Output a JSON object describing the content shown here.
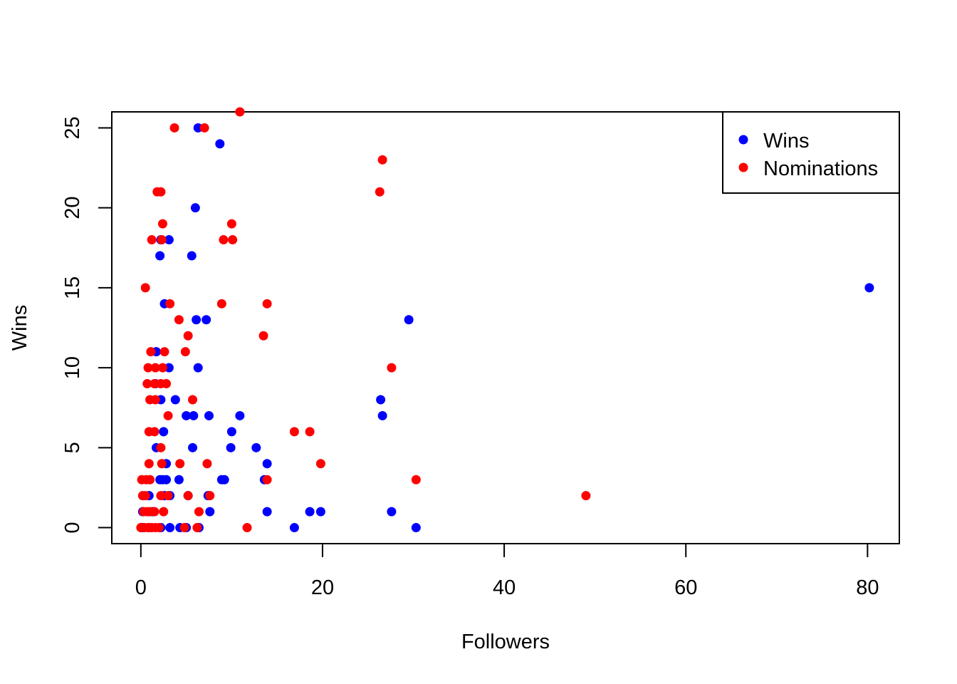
{
  "chart_data": {
    "type": "scatter",
    "title": "",
    "xlabel": "Followers",
    "ylabel": "Wins",
    "xlim": [
      -3.2,
      83.5
    ],
    "ylim": [
      -1.0,
      26.0
    ],
    "xticks": [
      0,
      20,
      40,
      60,
      80
    ],
    "yticks": [
      0,
      5,
      10,
      15,
      20,
      25
    ],
    "grid": false,
    "legend": {
      "position": "top-right",
      "entries": [
        "Wins",
        "Nominations"
      ]
    },
    "series": [
      {
        "name": "Wins",
        "color": "#0000ff",
        "points": [
          [
            6.3,
            25
          ],
          [
            8.7,
            24
          ],
          [
            6.0,
            20
          ],
          [
            3.1,
            18
          ],
          [
            2.2,
            18
          ],
          [
            5.6,
            17
          ],
          [
            2.1,
            17
          ],
          [
            2.6,
            14
          ],
          [
            6.1,
            13
          ],
          [
            7.2,
            13
          ],
          [
            29.5,
            13
          ],
          [
            3.1,
            10
          ],
          [
            6.3,
            10
          ],
          [
            1.7,
            11
          ],
          [
            1.6,
            9
          ],
          [
            2.2,
            8
          ],
          [
            3.8,
            8
          ],
          [
            26.4,
            8
          ],
          [
            5.0,
            7
          ],
          [
            5.8,
            7
          ],
          [
            7.5,
            7
          ],
          [
            10.9,
            7
          ],
          [
            26.6,
            7
          ],
          [
            2.5,
            6
          ],
          [
            10.0,
            6
          ],
          [
            1.7,
            5
          ],
          [
            5.7,
            5
          ],
          [
            9.9,
            5
          ],
          [
            12.7,
            5
          ],
          [
            13.9,
            4
          ],
          [
            2.8,
            4
          ],
          [
            2.1,
            3
          ],
          [
            2.4,
            3
          ],
          [
            2.8,
            3
          ],
          [
            4.2,
            3
          ],
          [
            8.9,
            3
          ],
          [
            9.2,
            3
          ],
          [
            13.6,
            3
          ],
          [
            0.9,
            2
          ],
          [
            2.6,
            2
          ],
          [
            3.2,
            2
          ],
          [
            5.2,
            2
          ],
          [
            7.4,
            2
          ],
          [
            0.2,
            1
          ],
          [
            1.3,
            1
          ],
          [
            7.6,
            1
          ],
          [
            13.9,
            1
          ],
          [
            18.6,
            1
          ],
          [
            19.8,
            1
          ],
          [
            27.6,
            1
          ],
          [
            80.2,
            15
          ],
          [
            0.2,
            0
          ],
          [
            0.9,
            0
          ],
          [
            2.2,
            0
          ],
          [
            3.2,
            0
          ],
          [
            4.3,
            0
          ],
          [
            5.0,
            0
          ],
          [
            6.4,
            0
          ],
          [
            16.9,
            0
          ],
          [
            30.3,
            0
          ]
        ]
      },
      {
        "name": "Nominations",
        "color": "#ff0000",
        "points": [
          [
            10.9,
            26
          ],
          [
            3.7,
            25
          ],
          [
            7.0,
            25
          ],
          [
            26.6,
            23
          ],
          [
            1.8,
            21
          ],
          [
            2.2,
            21
          ],
          [
            26.3,
            21
          ],
          [
            2.4,
            19
          ],
          [
            10.0,
            19
          ],
          [
            1.2,
            18
          ],
          [
            2.3,
            18
          ],
          [
            9.1,
            18
          ],
          [
            10.1,
            18
          ],
          [
            0.5,
            15
          ],
          [
            3.2,
            14
          ],
          [
            8.9,
            14
          ],
          [
            13.9,
            14
          ],
          [
            4.2,
            13
          ],
          [
            5.2,
            12
          ],
          [
            13.5,
            12
          ],
          [
            1.1,
            11
          ],
          [
            2.6,
            11
          ],
          [
            4.9,
            11
          ],
          [
            0.8,
            10
          ],
          [
            1.6,
            10
          ],
          [
            2.4,
            10
          ],
          [
            27.6,
            10
          ],
          [
            0.7,
            9
          ],
          [
            1.5,
            9
          ],
          [
            2.2,
            9
          ],
          [
            2.8,
            9
          ],
          [
            1.0,
            8
          ],
          [
            1.6,
            8
          ],
          [
            5.7,
            8
          ],
          [
            3.0,
            7
          ],
          [
            0.9,
            6
          ],
          [
            1.5,
            6
          ],
          [
            16.9,
            6
          ],
          [
            18.6,
            6
          ],
          [
            2.2,
            5
          ],
          [
            0.9,
            4
          ],
          [
            2.3,
            4
          ],
          [
            4.3,
            4
          ],
          [
            7.3,
            4
          ],
          [
            19.8,
            4
          ],
          [
            0.1,
            3
          ],
          [
            0.6,
            3
          ],
          [
            1.0,
            3
          ],
          [
            13.9,
            3
          ],
          [
            30.3,
            3
          ],
          [
            0.2,
            2
          ],
          [
            0.5,
            2
          ],
          [
            2.2,
            2
          ],
          [
            3.0,
            2
          ],
          [
            5.2,
            2
          ],
          [
            7.6,
            2
          ],
          [
            49.0,
            2
          ],
          [
            0.3,
            1
          ],
          [
            0.7,
            1
          ],
          [
            1.0,
            1
          ],
          [
            1.5,
            1
          ],
          [
            2.5,
            1
          ],
          [
            6.4,
            1
          ],
          [
            0.0,
            0
          ],
          [
            0.4,
            0
          ],
          [
            0.8,
            0
          ],
          [
            1.2,
            0
          ],
          [
            1.6,
            0
          ],
          [
            2.0,
            0
          ],
          [
            4.8,
            0
          ],
          [
            6.2,
            0
          ],
          [
            11.7,
            0
          ]
        ]
      }
    ]
  }
}
